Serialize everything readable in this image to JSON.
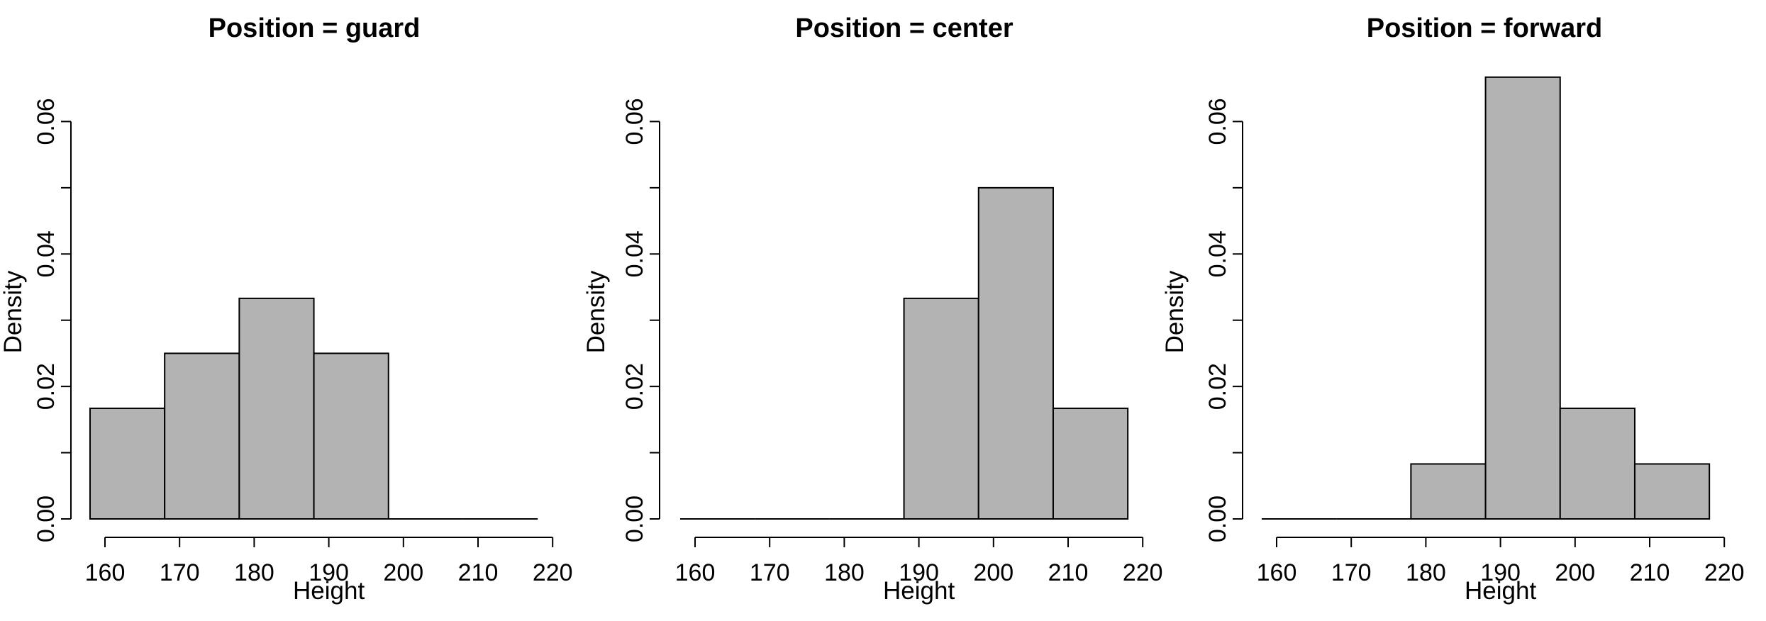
{
  "chart_data": [
    {
      "type": "bar",
      "title": "Position = guard",
      "xlabel": "Height",
      "ylabel": "Density",
      "bins": [
        [
          158,
          168
        ],
        [
          168,
          178
        ],
        [
          178,
          188
        ],
        [
          188,
          198
        ],
        [
          198,
          208
        ],
        [
          208,
          218
        ]
      ],
      "values": [
        0.0167,
        0.025,
        0.0333,
        0.025,
        0,
        0
      ],
      "xlim": [
        158,
        218
      ],
      "ylim": [
        0,
        0.06
      ],
      "xticks": [
        "160",
        "170",
        "180",
        "190",
        "200",
        "210",
        "220"
      ],
      "yticks": [
        "0.00",
        "0.02",
        "0.04",
        "0.06"
      ],
      "grid": false,
      "bar_color": "#b3b3b3"
    },
    {
      "type": "bar",
      "title": "Position = center",
      "xlabel": "Height",
      "ylabel": "Density",
      "bins": [
        [
          158,
          168
        ],
        [
          168,
          178
        ],
        [
          178,
          188
        ],
        [
          188,
          198
        ],
        [
          198,
          208
        ],
        [
          208,
          218
        ]
      ],
      "values": [
        0,
        0,
        0,
        0.0333,
        0.05,
        0.0167
      ],
      "xlim": [
        158,
        218
      ],
      "ylim": [
        0,
        0.06
      ],
      "xticks": [
        "160",
        "170",
        "180",
        "190",
        "200",
        "210",
        "220"
      ],
      "yticks": [
        "0.00",
        "0.02",
        "0.04",
        "0.06"
      ],
      "grid": false,
      "bar_color": "#b3b3b3"
    },
    {
      "type": "bar",
      "title": "Position = forward",
      "xlabel": "Height",
      "ylabel": "Density",
      "bins": [
        [
          158,
          168
        ],
        [
          168,
          178
        ],
        [
          178,
          188
        ],
        [
          188,
          198
        ],
        [
          198,
          208
        ],
        [
          208,
          218
        ]
      ],
      "values": [
        0,
        0,
        0.0083,
        0.0667,
        0.0167,
        0.0083
      ],
      "xlim": [
        158,
        218
      ],
      "ylim": [
        0,
        0.06
      ],
      "xticks": [
        "160",
        "170",
        "180",
        "190",
        "200",
        "210",
        "220"
      ],
      "yticks": [
        "0.00",
        "0.02",
        "0.04",
        "0.06"
      ],
      "grid": false,
      "bar_color": "#b3b3b3"
    }
  ]
}
